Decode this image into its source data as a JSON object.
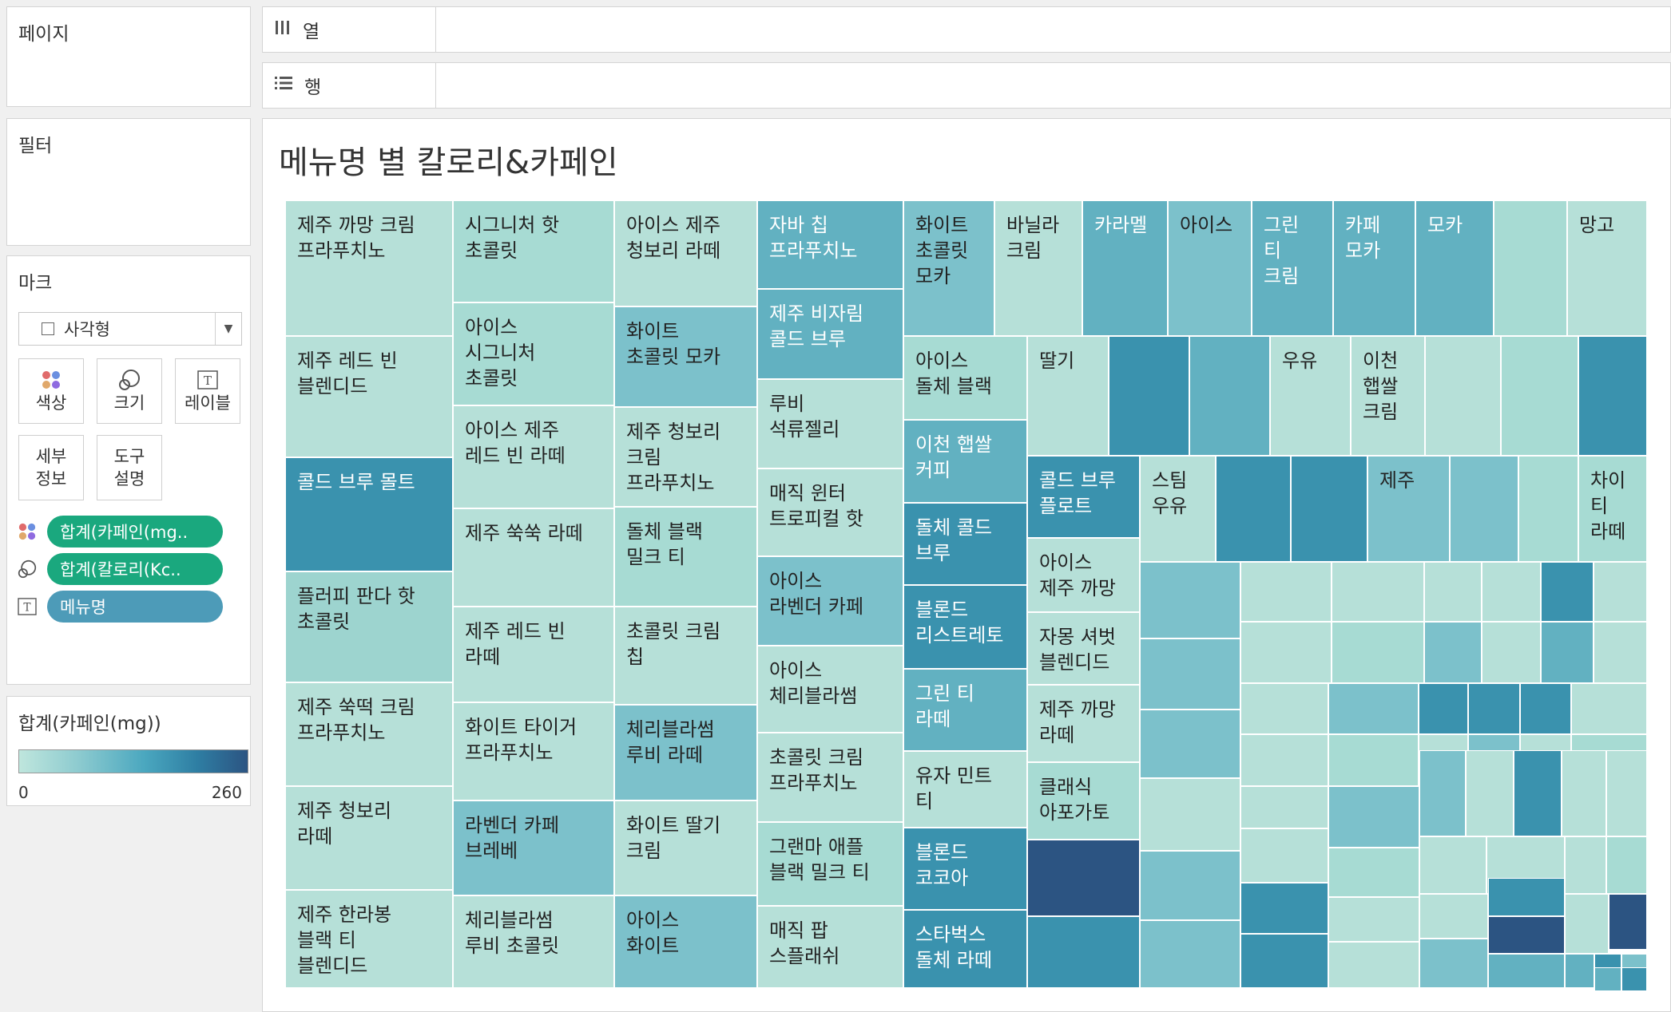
{
  "shelves": {
    "pages": {
      "title": "페이지"
    },
    "filters": {
      "title": "필터"
    },
    "columns": {
      "label": "열"
    },
    "rows": {
      "label": "행"
    }
  },
  "marks": {
    "title": "마크",
    "mark_type": "사각형",
    "buttons": {
      "color": "색상",
      "size": "크기",
      "label": "레이블",
      "detail": "세부\n정보",
      "tooltip": "도구\n설명"
    },
    "fields": {
      "color_field": "합계(카페인(mg..",
      "size_field": "합계(칼로리(Kc..",
      "label_field": "메뉴명"
    }
  },
  "legend": {
    "title": "합계(카페인(mg))",
    "min": "0",
    "max": "260",
    "colors": [
      "#bfe6dd",
      "#8fccd0",
      "#4aa7bf",
      "#2e7ea3",
      "#2c5482"
    ]
  },
  "view": {
    "title": "메뉴명 별 칼로리&카페인"
  },
  "chart_data": {
    "type": "treemap",
    "title": "메뉴명 별 칼로리&카페인",
    "size_measure": "합계(칼로리(Kc..",
    "color_measure": "합계(카페인(mg))",
    "color_range": [
      0,
      260
    ],
    "labeled_items": [
      {
        "label": "제주 까망 크림\n프라푸치노",
        "color": "#b6e0d8"
      },
      {
        "label": "제주 레드 빈\n블렌디드",
        "color": "#b6e0d8"
      },
      {
        "label": "콜드 브루 몰트",
        "color": "#3a92ae"
      },
      {
        "label": "플러피 판다 핫\n초콜릿",
        "color": "#9dd4cf"
      },
      {
        "label": "제주 쑥떡 크림\n프라푸치노",
        "color": "#b6e0d8"
      },
      {
        "label": "제주 청보리\n라떼",
        "color": "#b6e0d8"
      },
      {
        "label": "제주 한라봉\n블랙 티\n블렌디드",
        "color": "#b6e0d8"
      },
      {
        "label": "시그니처 핫\n초콜릿",
        "color": "#a7dbd3"
      },
      {
        "label": "아이스\n시그니처\n초콜릿",
        "color": "#a7dbd3"
      },
      {
        "label": "아이스 제주\n레드 빈 라떼",
        "color": "#b6e0d8"
      },
      {
        "label": "제주 쑥쑥 라떼",
        "color": "#b6e0d8"
      },
      {
        "label": "제주 레드 빈\n라떼",
        "color": "#b6e0d8"
      },
      {
        "label": "화이트 타이거\n프라푸치노",
        "color": "#b6e0d8"
      },
      {
        "label": "라벤더 카페\n브레베",
        "color": "#7cc1cb"
      },
      {
        "label": "체리블라썸\n루비 초콜릿",
        "color": "#b6e0d8"
      },
      {
        "label": "아이스 제주\n청보리 라떼",
        "color": "#b6e0d8"
      },
      {
        "label": "화이트\n초콜릿 모카",
        "color": "#7cc1cb"
      },
      {
        "label": "제주 청보리\n크림\n프라푸치노",
        "color": "#b6e0d8"
      },
      {
        "label": "돌체 블랙\n밀크 티",
        "color": "#a7dbd3"
      },
      {
        "label": "초콜릿 크림\n칩",
        "color": "#b6e0d8"
      },
      {
        "label": "체리블라썸\n루비 라떼",
        "color": "#7cc1cb"
      },
      {
        "label": "화이트 딸기\n크림",
        "color": "#b6e0d8"
      },
      {
        "label": "아이스\n화이트",
        "color": "#7cc1cb"
      },
      {
        "label": "자바 칩\n프라푸치노",
        "color": "#62b1c1"
      },
      {
        "label": "제주 비자림\n콜드 브루",
        "color": "#62b1c1"
      },
      {
        "label": "루비\n석류젤리",
        "color": "#b6e0d8"
      },
      {
        "label": "매직 윈터\n트로피컬 핫",
        "color": "#b6e0d8"
      },
      {
        "label": "아이스\n라벤더 카페",
        "color": "#7cc1cb"
      },
      {
        "label": "아이스\n체리블라썸",
        "color": "#b6e0d8"
      },
      {
        "label": "초콜릿 크림\n프라푸치노",
        "color": "#b6e0d8"
      },
      {
        "label": "그랜마 애플\n블랙 밀크 티",
        "color": "#a7dbd3"
      },
      {
        "label": "매직 팝\n스플래쉬",
        "color": "#b6e0d8"
      },
      {
        "label": "화이트\n초콜릿\n모카",
        "color": "#7cc1cb"
      },
      {
        "label": "바닐라\n크림",
        "color": "#b6e0d8"
      },
      {
        "label": "카라멜",
        "color": "#62b1c1"
      },
      {
        "label": "아이스",
        "color": "#7cc1cb"
      },
      {
        "label": "그린\n티\n크림",
        "color": "#62b1c1"
      },
      {
        "label": "카페\n모카",
        "color": "#62b1c1"
      },
      {
        "label": "모카",
        "color": "#62b1c1"
      },
      {
        "label": "망고",
        "color": "#b6e0d8"
      },
      {
        "label": "아이스\n돌체 블랙",
        "color": "#a7dbd3"
      },
      {
        "label": "딸기",
        "color": "#b6e0d8"
      },
      {
        "label": "우유",
        "color": "#b6e0d8"
      },
      {
        "label": "이천\n햅쌀\n크림",
        "color": "#b6e0d8"
      },
      {
        "label": "이천 햅쌀\n커피",
        "color": "#62b1c1"
      },
      {
        "label": "돌체 콜드\n브루",
        "color": "#3a92ae"
      },
      {
        "label": "블론드\n리스트레토",
        "color": "#3a92ae"
      },
      {
        "label": "그린 티\n라떼",
        "color": "#62b1c1"
      },
      {
        "label": "유자 민트\n티",
        "color": "#b6e0d8"
      },
      {
        "label": "블론드\n코코아",
        "color": "#3a92ae"
      },
      {
        "label": "스타벅스\n돌체 라떼",
        "color": "#3a92ae"
      },
      {
        "label": "콜드 브루\n플로트",
        "color": "#3a92ae"
      },
      {
        "label": "아이스\n제주 까망",
        "color": "#b6e0d8"
      },
      {
        "label": "자몽 셔벗\n블렌디드",
        "color": "#b6e0d8"
      },
      {
        "label": "제주 까망\n라떼",
        "color": "#b6e0d8"
      },
      {
        "label": "클래식\n아포가토",
        "color": "#a7dbd3"
      },
      {
        "label": "스팀\n우유",
        "color": "#b6e0d8"
      },
      {
        "label": "제주",
        "color": "#7cc1cb"
      },
      {
        "label": "차이\n티\n라떼",
        "color": "#a7dbd3"
      }
    ]
  }
}
